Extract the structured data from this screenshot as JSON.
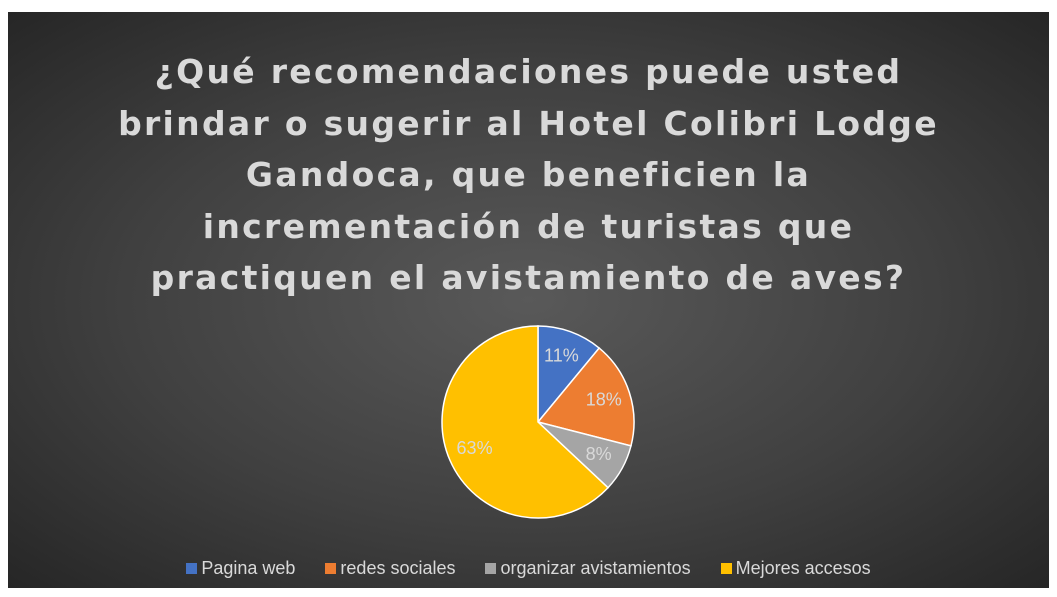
{
  "chart_data": {
    "type": "pie",
    "title": "¿Qué recomendaciones puede usted brindar o sugerir al Hotel Colibri Lodge Gandoca, que beneficien la incrementación de turistas que practiquen el avistamiento de aves?",
    "categories": [
      "Pagina web",
      "redes sociales",
      "organizar avistamientos",
      "Mejores accesos"
    ],
    "values": [
      11,
      18,
      8,
      63
    ],
    "value_labels": [
      "11%",
      "18%",
      "8%",
      "63%"
    ],
    "colors": [
      "#4472c4",
      "#ed7d31",
      "#a5a5a5",
      "#ffc000"
    ],
    "legend": "bottom"
  }
}
